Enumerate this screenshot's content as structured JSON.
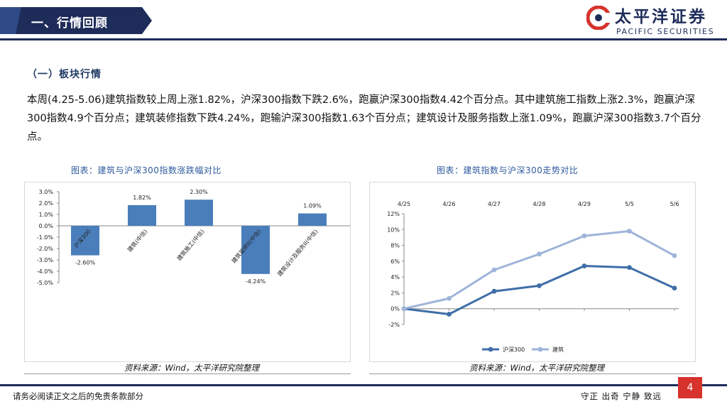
{
  "header": {
    "section_title": "一、行情回顾",
    "brand_cn": "太平洋证券",
    "brand_en": "PACIFIC SECURITIES",
    "banner_color": "#1e2c5a",
    "logo_color": "#d7322c"
  },
  "subsection_title": "（一）板块行情",
  "body_text": "本周(4.25-5.06)建筑指数较上周上涨1.82%，沪深300指数下跌2.6%，跑赢沪深300指数4.42个百分点。其中建筑施工指数上涨2.3%，跑赢沪深300指数4.9个百分点；建筑装修指数下跌4.24%，跑输沪深300指数1.63个百分点；建筑设计及服务指数上涨1.09%，跑赢沪深300指数3.7个百分点。",
  "chart_data": [
    {
      "type": "bar",
      "title": "图表：建筑与沪深300指数涨跌幅对比",
      "categories": [
        "沪深300",
        "建筑(中信)",
        "建筑施工(中信)",
        "建筑装修II(中信)",
        "建筑设计及服务II(中信)"
      ],
      "values": [
        -2.6,
        1.82,
        2.3,
        -4.24,
        1.09
      ],
      "value_labels": [
        "-2.60%",
        "1.82%",
        "2.30%",
        "-4.24%",
        "1.09%"
      ],
      "ylim": [
        -5.0,
        3.0
      ],
      "yticks": [
        "3.0%",
        "2.0%",
        "1.0%",
        "0.0%",
        "-1.0%",
        "-2.0%",
        "-3.0%",
        "-4.0%",
        "-5.0%"
      ],
      "ytick_values": [
        3,
        2,
        1,
        0,
        -1,
        -2,
        -3,
        -4,
        -5
      ],
      "color": "#4a7ebb",
      "grid": false,
      "source": "资料来源：Wind，太平洋研究院整理"
    },
    {
      "type": "line",
      "title": "图表：建筑指数与沪深300走势对比",
      "x": [
        "4/25",
        "4/26",
        "4/27",
        "4/28",
        "4/29",
        "5/5",
        "5/6"
      ],
      "series": [
        {
          "name": "沪深300",
          "values": [
            0.0,
            -0.7,
            2.2,
            2.9,
            5.4,
            5.2,
            2.6
          ],
          "color": "#3f6ea8"
        },
        {
          "name": "建筑",
          "values": [
            0.0,
            1.3,
            4.9,
            6.9,
            9.2,
            9.8,
            6.7
          ],
          "color": "#9fb4d9"
        }
      ],
      "ylim": [
        -2,
        12
      ],
      "yticks": [
        "12%",
        "10%",
        "8%",
        "6%",
        "4%",
        "2%",
        "0%",
        "-2%"
      ],
      "ytick_values": [
        12,
        10,
        8,
        6,
        4,
        2,
        0,
        -2
      ],
      "legend": "bottom",
      "grid": false,
      "source": "资料来源：Wind，太平洋研究院整理"
    }
  ],
  "footer": {
    "disclaimer": "请务必阅读正文之后的免责条款部分",
    "motto": "守正 出奇 宁静 致远",
    "page_number": "4"
  }
}
